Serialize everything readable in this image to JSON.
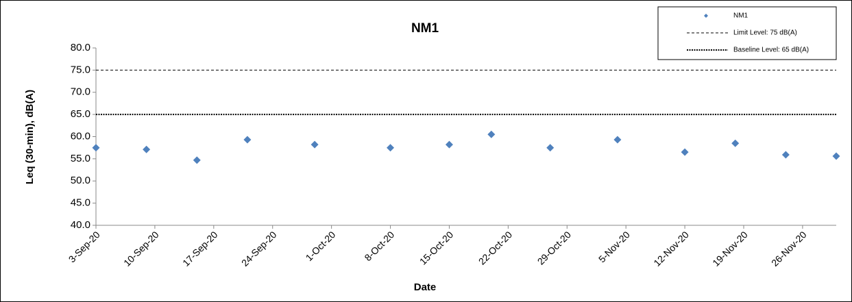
{
  "chart_data": {
    "type": "scatter",
    "title": "NM1",
    "x_label": "Date",
    "y_label": "Leq (30-min), dB(A)",
    "x": [
      "2020-09-03",
      "2020-09-09",
      "2020-09-15",
      "2020-09-21",
      "2020-09-29",
      "2020-10-08",
      "2020-10-15",
      "2020-10-20",
      "2020-10-27",
      "2020-11-04",
      "2020-11-12",
      "2020-11-18",
      "2020-11-24",
      "2020-11-30"
    ],
    "series": [
      {
        "name": "NM1",
        "color": "#4f81bd",
        "values": [
          57.5,
          57.1,
          54.7,
          59.3,
          58.2,
          57.5,
          58.2,
          60.5,
          57.5,
          59.3,
          56.5,
          58.5,
          55.9,
          55.6
        ]
      }
    ],
    "reference_lines": [
      {
        "name": "Limit Level: 75 dB(A)",
        "value": 75,
        "style": "dashed",
        "color": "#000000"
      },
      {
        "name": "Baseline Level: 65 dB(A)",
        "value": 65,
        "style": "dotted",
        "color": "#000000"
      }
    ],
    "xlim": [
      "2020-09-03",
      "2020-11-30"
    ],
    "xticks": [
      {
        "value": "2020-09-03",
        "label": "3-Sep-20"
      },
      {
        "value": "2020-09-10",
        "label": "10-Sep-20"
      },
      {
        "value": "2020-09-17",
        "label": "17-Sep-20"
      },
      {
        "value": "2020-09-24",
        "label": "24-Sep-20"
      },
      {
        "value": "2020-10-01",
        "label": "1-Oct-20"
      },
      {
        "value": "2020-10-08",
        "label": "8-Oct-20"
      },
      {
        "value": "2020-10-15",
        "label": "15-Oct-20"
      },
      {
        "value": "2020-10-22",
        "label": "22-Oct-20"
      },
      {
        "value": "2020-10-29",
        "label": "29-Oct-20"
      },
      {
        "value": "2020-11-05",
        "label": "5-Nov-20"
      },
      {
        "value": "2020-11-12",
        "label": "12-Nov-20"
      },
      {
        "value": "2020-11-19",
        "label": "19-Nov-20"
      },
      {
        "value": "2020-11-26",
        "label": "26-Nov-20"
      }
    ],
    "ylim": [
      40,
      80
    ],
    "yticks": [
      {
        "value": 40,
        "label": "40.0"
      },
      {
        "value": 45,
        "label": "45.0"
      },
      {
        "value": 50,
        "label": "50.0"
      },
      {
        "value": 55,
        "label": "55.0"
      },
      {
        "value": 60,
        "label": "60.0"
      },
      {
        "value": 65,
        "label": "65.0"
      },
      {
        "value": 70,
        "label": "70.0"
      },
      {
        "value": 75,
        "label": "75.0"
      },
      {
        "value": 80,
        "label": "80.0"
      }
    ],
    "grid": false,
    "legend": "top-right"
  }
}
